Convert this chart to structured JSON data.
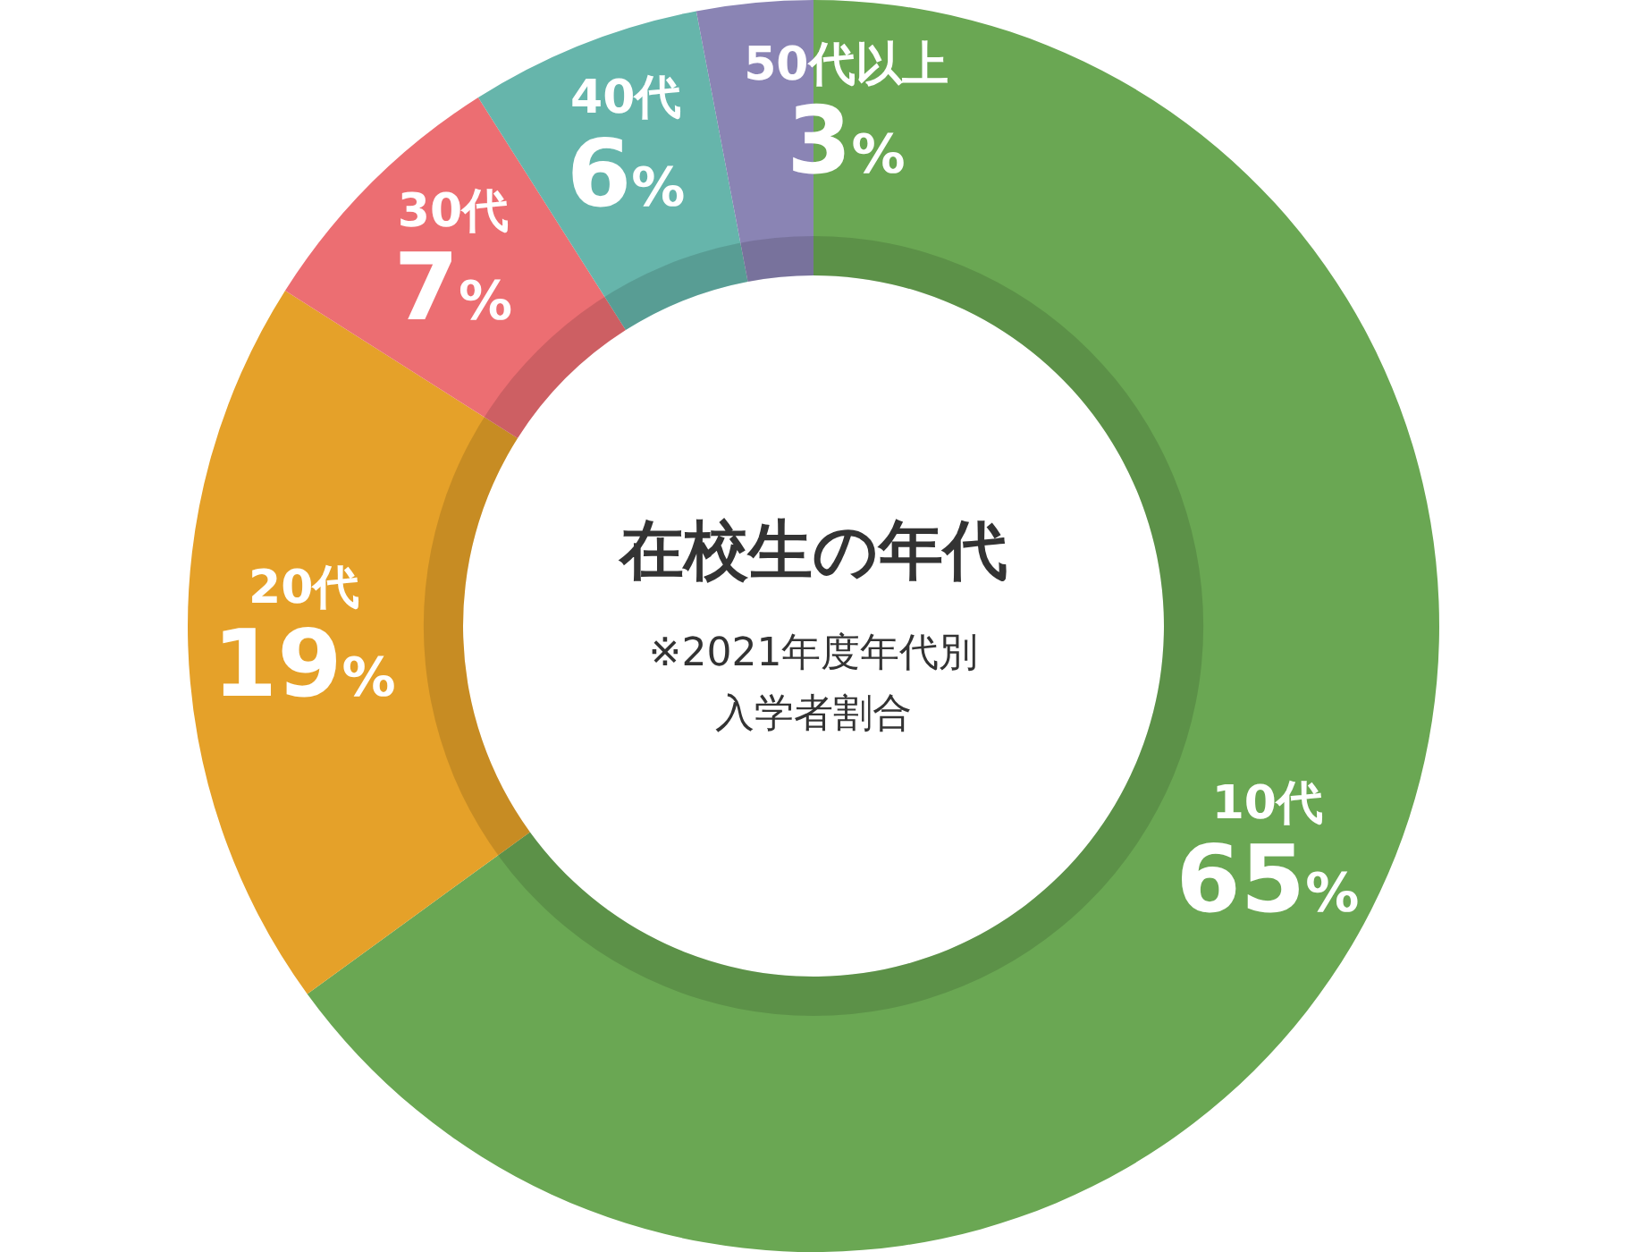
{
  "chart_data": {
    "type": "donut",
    "title": "在校生の年代",
    "subtitle": "※2021年度年代別入学者割合",
    "categories": [
      "10代",
      "20代",
      "30代",
      "40代",
      "50代以上"
    ],
    "values": [
      65,
      19,
      7,
      6,
      3
    ],
    "value_labels": [
      "65%",
      "19%",
      "7%",
      "6%",
      "3%"
    ],
    "colors": [
      "#6aa753",
      "#e5a129",
      "#ec6e72",
      "#66b5ab",
      "#8a84b4"
    ]
  }
}
